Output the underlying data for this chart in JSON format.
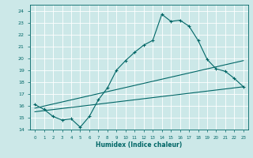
{
  "xlabel": "Humidex (Indice chaleur)",
  "bg_color": "#cce8e8",
  "grid_color": "#ffffff",
  "line_color": "#006666",
  "xlim": [
    -0.5,
    23.5
  ],
  "ylim": [
    14,
    24.5
  ],
  "xticks": [
    0,
    1,
    2,
    3,
    4,
    5,
    6,
    7,
    8,
    9,
    10,
    11,
    12,
    13,
    14,
    15,
    16,
    17,
    18,
    19,
    20,
    21,
    22,
    23
  ],
  "yticks": [
    14,
    15,
    16,
    17,
    18,
    19,
    20,
    21,
    22,
    23,
    24
  ],
  "line1_x": [
    0,
    1,
    2,
    3,
    4,
    5,
    6,
    7,
    8,
    9,
    10,
    11,
    12,
    13,
    14,
    15,
    16,
    17,
    18,
    19,
    20,
    21,
    22,
    23
  ],
  "line1_y": [
    16.1,
    15.7,
    15.1,
    14.8,
    14.9,
    14.2,
    15.1,
    16.5,
    17.5,
    19.0,
    19.8,
    20.5,
    21.1,
    21.5,
    23.7,
    23.1,
    23.2,
    22.7,
    21.5,
    19.9,
    19.1,
    18.9,
    18.3,
    17.6
  ],
  "line2_x": [
    0,
    23
  ],
  "line2_y": [
    15.5,
    17.6
  ],
  "line3_x": [
    0,
    23
  ],
  "line3_y": [
    15.8,
    19.8
  ]
}
